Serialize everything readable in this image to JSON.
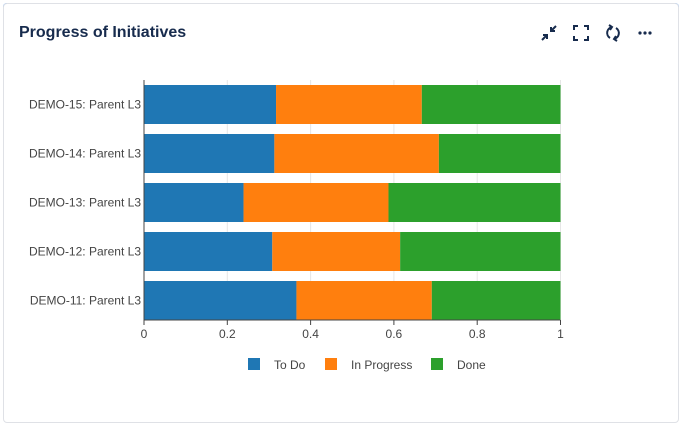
{
  "header": {
    "title": "Progress of Initiatives",
    "icons": [
      "minimize-icon",
      "fullscreen-icon",
      "refresh-icon",
      "more-icon"
    ]
  },
  "chart_data": {
    "type": "bar",
    "orientation": "horizontal",
    "stacked": true,
    "categories": [
      "DEMO-15: Parent L3",
      "DEMO-14: Parent L3",
      "DEMO-13: Parent L3",
      "DEMO-12: Parent L3",
      "DEMO-11: Parent L3"
    ],
    "series": [
      {
        "name": "To Do",
        "color": "#1f77b4",
        "values": [
          0.317,
          0.313,
          0.239,
          0.308,
          0.366
        ]
      },
      {
        "name": "In Progress",
        "color": "#ff7f0e",
        "values": [
          0.35,
          0.395,
          0.348,
          0.307,
          0.325
        ]
      },
      {
        "name": "Done",
        "color": "#2ca02c",
        "values": [
          0.333,
          0.292,
          0.413,
          0.385,
          0.309
        ]
      }
    ],
    "xlim": [
      0,
      1
    ],
    "xticks": [
      "0",
      "0.2",
      "0.4",
      "0.6",
      "0.8",
      "1"
    ],
    "grid": true,
    "legend": "bottom"
  }
}
